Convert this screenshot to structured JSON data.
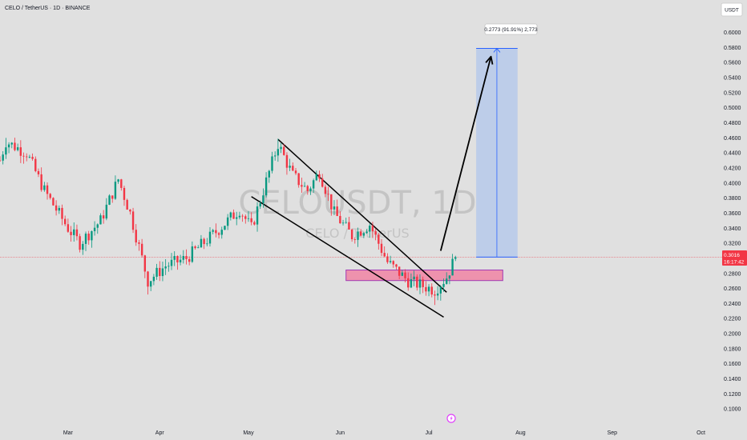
{
  "header": {
    "symbol_title": "CELO / TetherUS · 1D · BINANCE",
    "currency_button": "USDT"
  },
  "watermark": {
    "ticker": "CELOUSDT, 1D",
    "name": "CELO / TetherUS"
  },
  "measure_label": "0.2773 (91.91%) 2,773",
  "price_tag": {
    "price": "0.3016",
    "countdown": "16:17:42",
    "color": "#f23645"
  },
  "colors": {
    "up": "#089981",
    "down": "#f23645",
    "measure_fill": "#b6c9ea",
    "measure_line": "#2962ff",
    "zone_fill": "#f08aa8",
    "zone_border": "#9c27b0"
  },
  "chart_data": {
    "type": "candlestick",
    "x_axis_ticks": [
      "Mar",
      "Apr",
      "May",
      "Jun",
      "Jul",
      "Aug",
      "Sep",
      "Oct"
    ],
    "y_axis_ticks": [
      "0.6000",
      "0.5800",
      "0.5600",
      "0.5400",
      "0.5200",
      "0.5000",
      "0.4800",
      "0.4600",
      "0.4400",
      "0.4200",
      "0.4000",
      "0.3800",
      "0.3600",
      "0.3400",
      "0.3200",
      "0.3000",
      "0.2800",
      "0.2600",
      "0.2400",
      "0.2200",
      "0.2000",
      "0.1800",
      "0.1600",
      "0.1400",
      "0.1200",
      "0.1000"
    ],
    "ylim": [
      0.097,
      0.624
    ],
    "xlim": [
      "2024-02-07",
      "2024-10-06"
    ],
    "last_price": 0.3016,
    "key_prices": [
      {
        "date": "2024-02-09",
        "price": 0.46,
        "label": "local high"
      },
      {
        "date": "2024-03-28",
        "price": 0.252,
        "label": "local low"
      },
      {
        "date": "2024-05-11",
        "price": 0.459,
        "label": "swing high"
      },
      {
        "date": "2024-07-03",
        "price": 0.238,
        "label": "swing low"
      },
      {
        "date": "2024-07-10",
        "price": 0.3016,
        "label": "last"
      }
    ],
    "annotations": {
      "falling_channel": [
        {
          "from": {
            "date": "2024-05-11",
            "price": 0.458
          },
          "to": {
            "date": "2024-07-07",
            "price": 0.255
          }
        },
        {
          "from": {
            "date": "2024-05-02",
            "price": 0.382
          },
          "to": {
            "date": "2024-07-06",
            "price": 0.222
          }
        }
      ],
      "support_zone": {
        "from": "2024-06-03",
        "to": "2024-07-26",
        "top": 0.2845,
        "bottom": 0.2705
      },
      "projection_arrow": {
        "from": {
          "date": "2024-07-05",
          "price": 0.31
        },
        "to": {
          "date": "2024-07-22",
          "price": 0.568
        }
      },
      "measure": {
        "from_date": "2024-07-17",
        "to_date": "2024-07-31",
        "low": 0.3016,
        "high": 0.5789,
        "label": "0.2773 (91.91%) 2,773"
      }
    }
  }
}
